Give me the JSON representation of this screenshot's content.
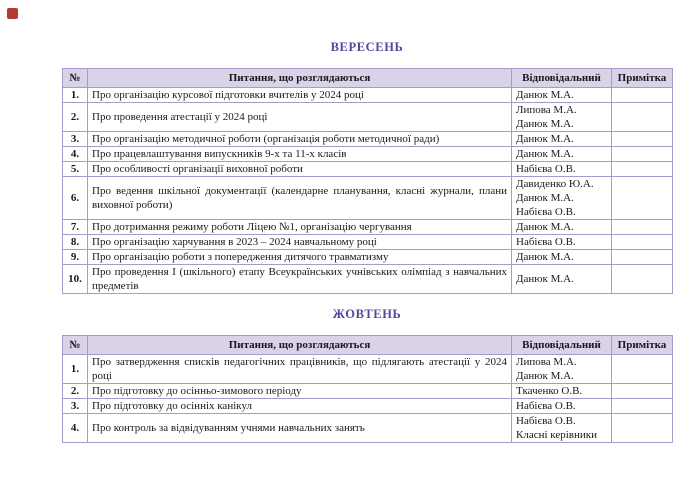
{
  "page": {
    "marker_color": "#b13c35"
  },
  "colors": {
    "header_bg": "#d9d2e9",
    "border": "#a89bc9",
    "title_text": "#52489b",
    "body_text": "#1a1a1a"
  },
  "tables": [
    {
      "title": "ВЕРЕСЕНЬ",
      "columns": {
        "num": "№",
        "question": "Питання, що розглядаються",
        "responsible": "Відповідальний",
        "note": "Примітка"
      },
      "rows": [
        {
          "num": "1.",
          "question": "Про організацію курсової підготовки вчителів у 2024 році",
          "responsible": "Данюк М.А.",
          "note": ""
        },
        {
          "num": "2.",
          "question": "Про проведення атестації у 2024 році",
          "responsible": "Липова М.А.\nДанюк М.А.",
          "note": ""
        },
        {
          "num": "3.",
          "question": "Про організацію методичної роботи (організація роботи методичної ради)",
          "responsible": "Данюк М.А.",
          "note": ""
        },
        {
          "num": "4.",
          "question": "Про працевлаштування випускників 9-х та 11-х  класів",
          "responsible": "Данюк М.А.",
          "note": ""
        },
        {
          "num": "5.",
          "question": "Про особливості організації виховної роботи",
          "responsible": "Набієва О.В.",
          "note": ""
        },
        {
          "num": "6.",
          "question": "Про ведення шкільної документації (календарне планування, класні журнали, плани виховної роботи)",
          "responsible": "Давиденко Ю.А.\nДанюк М.А.\nНабієва О.В.",
          "note": ""
        },
        {
          "num": "7.",
          "question": "Про дотримання режиму роботи Ліцею №1, організацію чергування",
          "responsible": "Данюк М.А.",
          "note": ""
        },
        {
          "num": "8.",
          "question": "Про організацію харчування в 2023 – 2024 навчальному році",
          "responsible": "Набієва О.В.",
          "note": ""
        },
        {
          "num": "9.",
          "question": "Про організацію роботи з попередження дитячого травматизму",
          "responsible": "Данюк М.А.",
          "note": ""
        },
        {
          "num": "10.",
          "question": "Про проведення І (шкільного) етапу  Всеукраїнських учнівських олімпіад з навчальних предметів",
          "responsible": "Данюк М.А.",
          "note": ""
        }
      ]
    },
    {
      "title": "ЖОВТЕНЬ",
      "columns": {
        "num": "№",
        "question": "Питання, що розглядаються",
        "responsible": "Відповідальний",
        "note": "Примітка"
      },
      "rows": [
        {
          "num": "1.",
          "question": "Про затвердження списків педагогічних працівників, що підлягають атестації у 2024 році",
          "responsible": "Липова М.А.\nДанюк М.А.",
          "note": ""
        },
        {
          "num": "2.",
          "question": "Про підготовку до осінньо-зимового періоду",
          "responsible": "Ткаченко О.В.",
          "note": ""
        },
        {
          "num": "3.",
          "question": "Про підготовку до осінніх канікул",
          "responsible": "Набієва О.В.",
          "note": ""
        },
        {
          "num": "4.",
          "question": "Про контроль за відвідуванням учнями навчальних занять",
          "responsible": "Набієва О.В.\nКласні керівники",
          "note": ""
        }
      ]
    }
  ]
}
